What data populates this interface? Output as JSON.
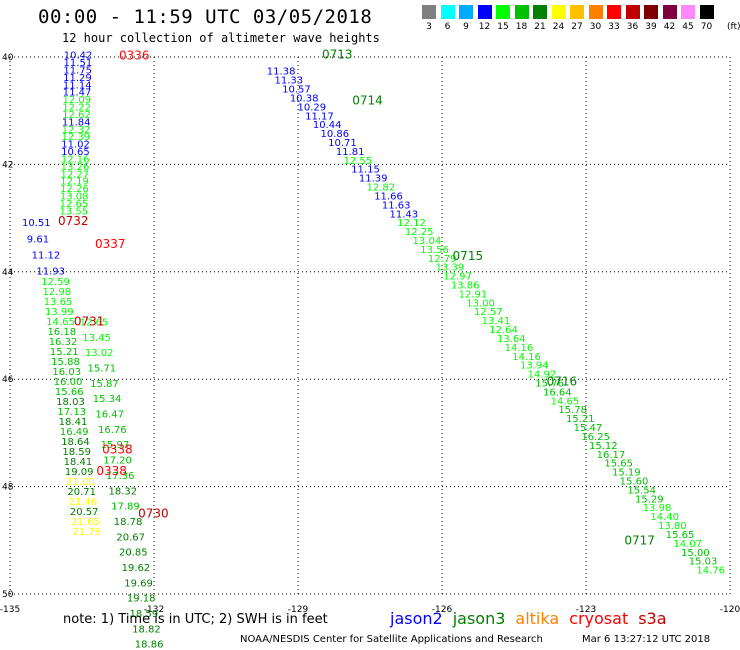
{
  "chart_data": {
    "type": "scatter",
    "title": "00:00 - 11:59 UTC 03/05/2018",
    "subtitle": "12 hour collection of altimeter wave heights",
    "xlim": [
      -135,
      -120
    ],
    "ylim": [
      40,
      50
    ],
    "y_inverted": true,
    "grid": true,
    "xticks": [
      -135,
      -132,
      -129,
      -126,
      -123,
      -120
    ],
    "xtick_labels": [
      "-135",
      "-132",
      "-129",
      "-126",
      "-123",
      "-120"
    ],
    "yticks": [
      40,
      42,
      44,
      46,
      48,
      50
    ],
    "ytick_labels": [
      "40",
      "42",
      "44",
      "46",
      "48",
      "50"
    ],
    "colorscale": {
      "labels": [
        "3",
        "6",
        "9",
        "12",
        "15",
        "18",
        "21",
        "24",
        "27",
        "30",
        "33",
        "36",
        "39",
        "42",
        "45",
        "70"
      ],
      "colors": [
        "#808080",
        "#00ffff",
        "#00aaff",
        "#0000ff",
        "#00ff00",
        "#00c000",
        "#008000",
        "#ffff00",
        "#ffc000",
        "#ff8000",
        "#ff0000",
        "#c00000",
        "#800000",
        "#800040",
        "#ff88ff",
        "#000000"
      ],
      "units": "(ft)"
    },
    "satellites": [
      {
        "name": "jason2",
        "color": "#0000ff"
      },
      {
        "name": "jason3",
        "color": "#008000"
      },
      {
        "name": "altika",
        "color": "#ff8000"
      },
      {
        "name": "cryosat",
        "color": "#ff0000"
      },
      {
        "name": "s3a",
        "color": "#c00000"
      }
    ],
    "tracks": [
      {
        "satellite": "jason3",
        "start": [
          -129.65,
          40.33
        ],
        "end": [
          -120.7,
          49.62
        ],
        "values": [
          "11.38",
          "11.33",
          "10.57",
          "10.38",
          "10.29",
          "11.17",
          "10.44",
          "10.86",
          "10.71",
          "11.81",
          "12.55",
          "11.15",
          "11.39",
          "12.82",
          "11.66",
          "11.63",
          "11.43",
          "12.12",
          "12.25",
          "13.04",
          "13.56",
          "12.79",
          "13.39",
          "12.97",
          "13.86",
          "12.91",
          "13.00",
          "12.57",
          "13.41",
          "12.64",
          "13.64",
          "14.16",
          "14.16",
          "13.94",
          "14.92",
          "15.76",
          "16.64",
          "14.65",
          "15.78",
          "15.21",
          "15.47",
          "16.25",
          "15.12",
          "16.17",
          "15.65",
          "15.19",
          "15.60",
          "15.54",
          "15.29",
          "13.98",
          "14.40",
          "13.80",
          "15.65",
          "14.07",
          "15.00",
          "15.03",
          "14.76"
        ]
      },
      {
        "satellite": "jason2",
        "start": [
          -133.88,
          40.03
        ],
        "end": [
          -133.97,
          42.93
        ],
        "values": [
          "10.42",
          "11.51",
          "11.75",
          "11.29",
          "11.14",
          "11.47",
          "12.09",
          "12.22",
          "12.62",
          "11.84",
          "12.32",
          "12.39",
          "11.02",
          "10.65",
          "12.16",
          "13.26",
          "12.27",
          "12.19",
          "12.26",
          "13.08",
          "12.65",
          "13.55"
        ]
      },
      {
        "satellite": "jason2",
        "start": [
          -134.75,
          43.15
        ],
        "end": [
          -134.45,
          44.05
        ],
        "values": [
          "10.51",
          "9.61",
          "11.12",
          "11.93"
        ]
      },
      {
        "satellite": "jason2",
        "start": [
          -134.35,
          44.25
        ],
        "end": [
          -133.7,
          48.9
        ],
        "values": [
          "12.59",
          "12.98",
          "13.65",
          "13.99",
          "14.65",
          "16.18",
          "16.32",
          "15.21",
          "15.88",
          "16.03",
          "16.00",
          "15.66",
          "18.03",
          "17.13",
          "18.41",
          "16.49",
          "18.64",
          "18.59",
          "18.41",
          "19.09",
          "21.00",
          "20.71",
          "21.46",
          "20.57",
          "21.65",
          "21.78"
        ]
      },
      {
        "satellite": "jason3",
        "start": [
          -133.55,
          45.0
        ],
        "end": [
          -132.4,
          51.0
        ],
        "values": [
          "12.65",
          "13.45",
          "13.02",
          "15.71",
          "15.87",
          "15.34",
          "16.47",
          "16.76",
          "15.97",
          "17.20",
          "17.36",
          "18.32",
          "17.89",
          "18.78",
          "20.67",
          "20.85",
          "19.62",
          "19.69",
          "19.18",
          "18.59",
          "18.82",
          "18.86"
        ]
      }
    ],
    "annotations": [
      {
        "text": "0336",
        "satellite": "cryosat",
        "x": -132.73,
        "y": 40.05
      },
      {
        "text": "0713",
        "satellite": "jason3",
        "x": -128.5,
        "y": 40.03
      },
      {
        "text": "0714",
        "satellite": "jason3",
        "x": -127.87,
        "y": 40.88
      },
      {
        "text": "0715",
        "satellite": "jason3",
        "x": -125.78,
        "y": 43.78
      },
      {
        "text": "0716",
        "satellite": "jason3",
        "x": -123.82,
        "y": 46.12
      },
      {
        "text": "0717",
        "satellite": "jason3",
        "x": -122.2,
        "y": 49.08
      },
      {
        "text": "0732",
        "satellite": "s3a",
        "x": -134.0,
        "y": 43.13
      },
      {
        "text": "0337",
        "satellite": "cryosat",
        "x": -133.23,
        "y": 43.56
      },
      {
        "text": "0731",
        "satellite": "s3a",
        "x": -133.67,
        "y": 45.0
      },
      {
        "text": "0338",
        "satellite": "cryosat",
        "x": -133.08,
        "y": 47.38
      },
      {
        "text": "0338",
        "satellite": "cryosat",
        "x": -133.2,
        "y": 47.78
      },
      {
        "text": "0730",
        "satellite": "s3a",
        "x": -132.33,
        "y": 48.58
      }
    ]
  },
  "footer": {
    "note": "note:  1) Time is in UTC;  2) SWH is in feet",
    "credit": "NOAA/NESDIS Center for Satellite Applications and Research",
    "timestamp": "Mar  6 13:27:12 UTC 2018"
  }
}
